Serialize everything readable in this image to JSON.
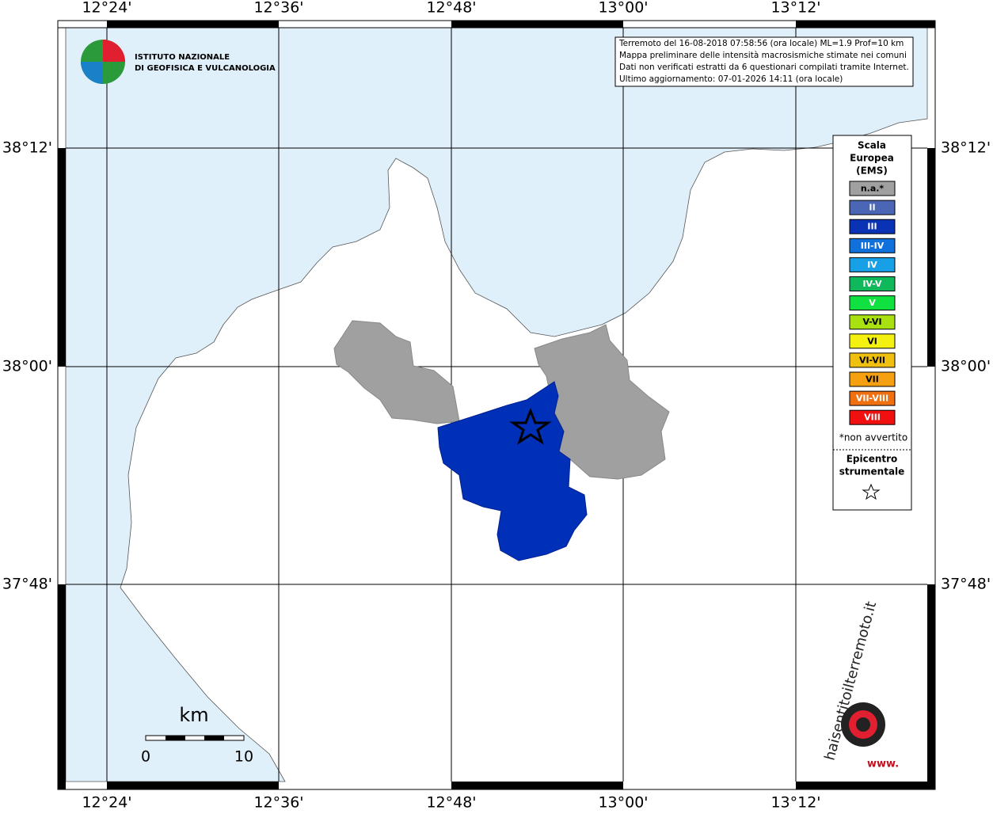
{
  "map": {
    "lon_labels": [
      "12°24'",
      "12°36'",
      "12°48'",
      "13°00'",
      "13°12'"
    ],
    "lat_labels": [
      "38°12'",
      "38°00'",
      "37°48'"
    ],
    "info": [
      "Terremoto del 16-08-2018 07:58:56 (ora locale) ML=1.9 Prof=10 km",
      "Mappa preliminare delle intensità macrosismiche stimate nei comuni",
      "Dati non verificati estratti da 6 questionari compilati tramite Internet.",
      "Ultimo aggiornamento: 07-01-2026 14:11 (ora locale)"
    ],
    "ingv": [
      "ISTITUTO NAZIONALE",
      "DI GEOFISICA E VULCANOLOGIA"
    ],
    "legend": {
      "title": [
        "Scala",
        "Europea",
        "(EMS)"
      ],
      "items": [
        {
          "label": "n.a.*",
          "color": "#a0a0a0"
        },
        {
          "label": "II",
          "color": "#4a66b4"
        },
        {
          "label": "III",
          "color": "#0a32b4"
        },
        {
          "label": "III-IV",
          "color": "#1070dc"
        },
        {
          "label": "IV",
          "color": "#18a0e6"
        },
        {
          "label": "IV-V",
          "color": "#10b85c"
        },
        {
          "label": "V",
          "color": "#10e040"
        },
        {
          "label": "V-VI",
          "color": "#a8e010"
        },
        {
          "label": "VI",
          "color": "#f4f010"
        },
        {
          "label": "VI-VII",
          "color": "#f0c010"
        },
        {
          "label": "VII",
          "color": "#f4a010"
        },
        {
          "label": "VII-VIII",
          "color": "#f07010"
        },
        {
          "label": "VIII",
          "color": "#f01010"
        }
      ],
      "note": "*non avvertito",
      "epicenter": [
        "Epicentro",
        "strumentale"
      ]
    },
    "scale": {
      "unit": "km",
      "ticks": [
        "0",
        "10"
      ]
    },
    "hst": {
      "site": "haisentitoilterremoto.it",
      "www": "www."
    }
  }
}
